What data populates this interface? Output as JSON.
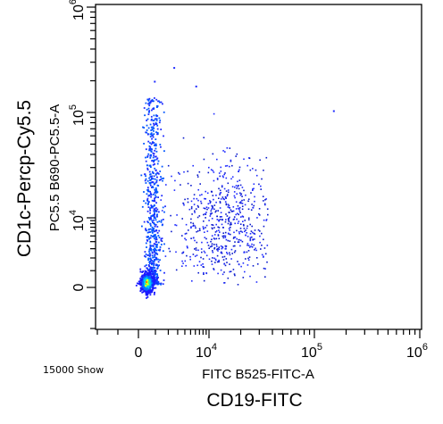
{
  "page": {
    "outer_y_label": "CD1c-Percp-Cy5.5",
    "outer_x_label": "CD19-FITC",
    "event_count": "15000 Show"
  },
  "chart_data": {
    "type": "scatter",
    "subtype": "flow-cytometry-density-dot-plot",
    "title": "",
    "xlabel": "FITC B525-FITC-A",
    "ylabel": "PC5.5 B690-PC5.5-A",
    "x_scale": "biexponential",
    "y_scale": "biexponential",
    "xlim": [
      -2000,
      1000000
    ],
    "ylim": [
      -3000,
      1000000
    ],
    "x_ticks": [
      {
        "label": "0",
        "value": 0
      },
      {
        "label": "10",
        "exp": "4",
        "value": 10000
      },
      {
        "label": "10",
        "exp": "5",
        "value": 100000
      },
      {
        "label": "10",
        "exp": "6",
        "value": 1000000
      }
    ],
    "y_ticks": [
      {
        "label": "0",
        "value": 0
      },
      {
        "label": "10",
        "exp": "4",
        "value": 10000
      },
      {
        "label": "10",
        "exp": "5",
        "value": 100000
      },
      {
        "label": "10",
        "exp": "6",
        "value": 1000000
      }
    ],
    "grid": false,
    "legend": "none",
    "event_count": 15000,
    "density_colors": [
      "#1a1aff",
      "#0070ff",
      "#00c8ff",
      "#30ff80",
      "#ffff00",
      "#ff8000"
    ],
    "populations": [
      {
        "name_visible": false,
        "x_center": 400,
        "y_center": 200,
        "density": "very high",
        "shape": "tight core"
      },
      {
        "name_visible": false,
        "x_center": 800,
        "y_center": 8000,
        "density": "medium",
        "shape": "vertical column"
      },
      {
        "name_visible": false,
        "x_center": 15000,
        "y_center": 8000,
        "density": "low",
        "shape": "diffuse cloud"
      }
    ],
    "outliers": [
      {
        "x": 900,
        "y": 200000
      },
      {
        "x": 2500,
        "y": 270000
      },
      {
        "x": 6000,
        "y": 180000
      },
      {
        "x": 150000,
        "y": 105000
      }
    ]
  }
}
